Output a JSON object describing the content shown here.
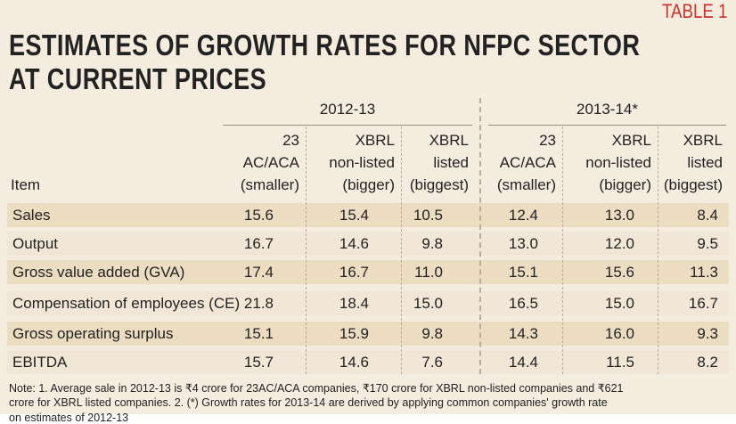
{
  "tag": "TABLE 1",
  "title": [
    "ESTIMATES OF GROWTH RATES FOR NFPC SECTOR",
    "AT CURRENT PRICES"
  ],
  "table": {
    "groups": [
      "2012-13",
      "2013-14*"
    ],
    "item_header": "Item",
    "columns": [
      [
        "23",
        "AC/ACA",
        "(smaller)"
      ],
      [
        "XBRL",
        "non-listed",
        "(bigger)"
      ],
      [
        "XBRL",
        "listed",
        "(biggest)"
      ],
      [
        "23",
        "AC/ACA",
        "(smaller)"
      ],
      [
        "XBRL",
        "non-listed",
        "(bigger)"
      ],
      [
        "XBRL",
        "listed",
        "(biggest)"
      ]
    ],
    "rows": [
      [
        "Sales",
        "15.6",
        "15.4",
        "10.5",
        "12.4",
        "13.0",
        "8.4"
      ],
      [
        "Output",
        "16.7",
        "14.6",
        "9.8",
        "13.0",
        "12.0",
        "9.5"
      ],
      [
        "Gross value added (GVA)",
        "17.4",
        "16.7",
        "11.0",
        "15.1",
        "15.6",
        "11.3"
      ],
      [
        "Compensation of employees (CE)",
        "21.8",
        "18.4",
        "15.0",
        "16.5",
        "15.0",
        "16.7"
      ],
      [
        "Gross operating surplus",
        "15.1",
        "15.9",
        "9.8",
        "14.3",
        "16.0",
        "9.3"
      ],
      [
        "EBITDA",
        "15.7",
        "14.6",
        "7.6",
        "14.4",
        "11.5",
        "8.2"
      ]
    ]
  },
  "note": [
    "Note: 1. Average sale in 2012-13 is ₹4 crore for 23AC/ACA companies, ₹170 crore for XBRL non-listed companies and ₹621",
    "crore for XBRL listed companies.  2. (*) Growth rates for 2013-14 are derived by applying common companies' growth rate",
    "on estimates of 2012-13"
  ]
}
